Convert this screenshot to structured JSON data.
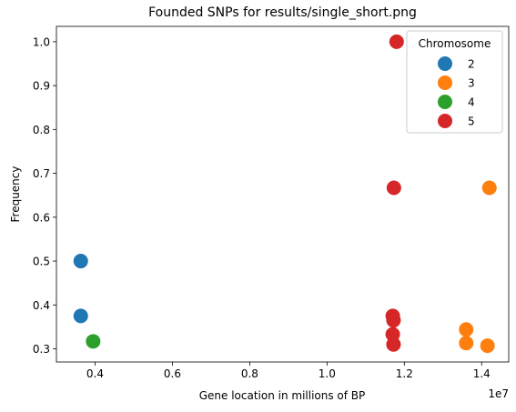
{
  "chart_data": {
    "type": "scatter",
    "title": "Founded SNPs for results/single_short.png",
    "xlabel": "Gene location in millions of BP",
    "ylabel": "Frequency",
    "x_offset_label": "1e7",
    "xlim": [
      3.0,
      14.7
    ],
    "ylim": [
      0.27,
      1.035
    ],
    "x_ticks": [
      0.4,
      0.6,
      0.8,
      1.0,
      1.2,
      1.4
    ],
    "x_tick_labels": [
      "0.4",
      "0.6",
      "0.8",
      "1.0",
      "1.2",
      "1.4"
    ],
    "y_ticks": [
      0.3,
      0.4,
      0.5,
      0.6,
      0.7,
      0.8,
      0.9,
      1.0
    ],
    "y_tick_labels": [
      "0.3",
      "0.4",
      "0.5",
      "0.6",
      "0.7",
      "0.8",
      "0.9",
      "1.0"
    ],
    "grid": false,
    "legend": {
      "title": "Chromosome",
      "placement": "top-right"
    },
    "series": [
      {
        "name": "2",
        "color": "#1f77b4",
        "points": [
          [
            3.63,
            0.5
          ],
          [
            3.63,
            0.375
          ]
        ]
      },
      {
        "name": "3",
        "color": "#ff7f0e",
        "points": [
          [
            14.2,
            0.667
          ],
          [
            13.6,
            0.344
          ],
          [
            13.6,
            0.313
          ],
          [
            14.15,
            0.307
          ]
        ]
      },
      {
        "name": "4",
        "color": "#2ca02c",
        "points": [
          [
            3.95,
            0.317
          ]
        ]
      },
      {
        "name": "5",
        "color": "#d62728",
        "points": [
          [
            11.8,
            1.0
          ],
          [
            11.73,
            0.667
          ],
          [
            11.7,
            0.375
          ],
          [
            11.72,
            0.365
          ],
          [
            11.7,
            0.333
          ],
          [
            11.72,
            0.31
          ]
        ]
      }
    ]
  }
}
